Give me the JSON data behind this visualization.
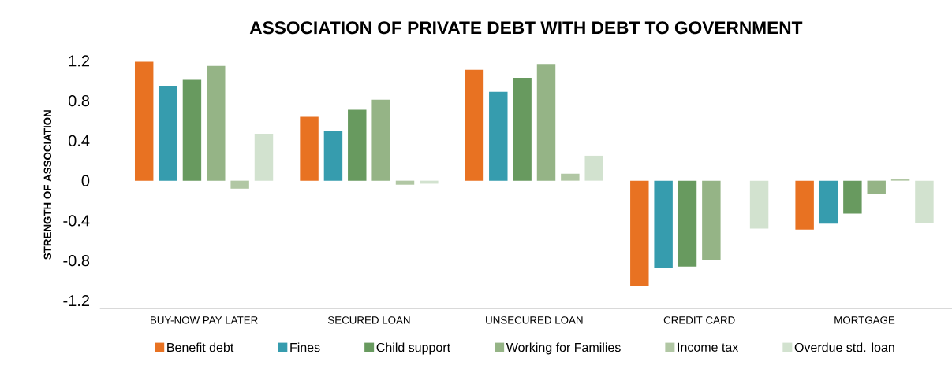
{
  "chart_data": {
    "type": "bar",
    "title": "ASSOCIATION OF PRIVATE DEBT WITH DEBT TO GOVERNMENT",
    "ylabel": "STRENGTH OF ASSOCIATION",
    "categories": [
      "BUY-NOW PAY LATER",
      "SECURED LOAN",
      "UNSECURED LOAN",
      "CREDIT CARD",
      "MORTGAGE"
    ],
    "series": [
      {
        "name": "Benefit debt",
        "color": "#e87222",
        "values": [
          1.19,
          0.64,
          1.11,
          -1.05,
          -0.49
        ]
      },
      {
        "name": "Fines",
        "color": "#369cae",
        "values": [
          0.95,
          0.5,
          0.89,
          -0.87,
          -0.43
        ]
      },
      {
        "name": "Child support",
        "color": "#689a5f",
        "values": [
          1.01,
          0.71,
          1.03,
          -0.86,
          -0.33
        ]
      },
      {
        "name": "Working for Families",
        "color": "#95b486",
        "values": [
          1.15,
          0.81,
          1.17,
          -0.79,
          -0.13
        ]
      },
      {
        "name": "Income tax",
        "color": "#b1c7a4",
        "values": [
          -0.08,
          -0.04,
          0.07,
          null,
          0.02
        ]
      },
      {
        "name": "Overdue std. loan",
        "color": "#d2e2cf",
        "values": [
          0.47,
          -0.03,
          0.25,
          -0.48,
          -0.42
        ]
      }
    ],
    "ylim": [
      -1.28,
      1.2
    ],
    "yticks": [
      1.2,
      0.8,
      0.4,
      0,
      -0.4,
      -0.8,
      -1.2
    ],
    "grid": false,
    "legend": "bottom"
  }
}
